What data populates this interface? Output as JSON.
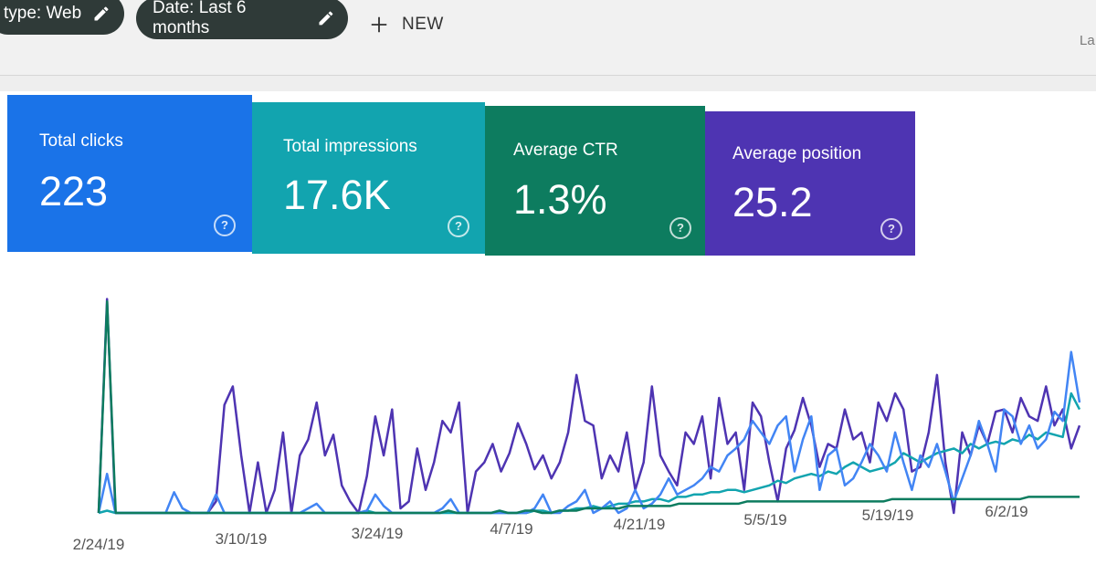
{
  "toolbar": {
    "chip_type_label": "type: Web",
    "chip_date_label": "Date: Last 6 months",
    "new_label": "NEW",
    "truncated_text": "La",
    "icons": {
      "edit": "pencil-icon",
      "add": "plus-icon"
    }
  },
  "cards": [
    {
      "label": "Total clicks",
      "value": "223",
      "color": "#1a73e8"
    },
    {
      "label": "Total impressions",
      "value": "17.6K",
      "color": "#12a4af"
    },
    {
      "label": "Average CTR",
      "value": "1.3%",
      "color": "#0d7c5f"
    },
    {
      "label": "Average position",
      "value": "25.2",
      "color": "#4e34b2"
    }
  ],
  "help_icon_text": "?",
  "chart_data": {
    "type": "line",
    "x_tick_labels": [
      "2/24/19",
      "3/10/19",
      "3/24/19",
      "4/7/19",
      "4/21/19",
      "5/5/19",
      "5/19/19",
      "6/2/19"
    ],
    "series": [
      {
        "color": "#4e34b2",
        "values": [
          0,
          93,
          0,
          0,
          0,
          0,
          0,
          0,
          0,
          0,
          0,
          0,
          0,
          0,
          5,
          47,
          55,
          25,
          0,
          22,
          0,
          10,
          35,
          0,
          25,
          32,
          48,
          25,
          34,
          12,
          5,
          0,
          16,
          42,
          25,
          45,
          2,
          5,
          28,
          10,
          22,
          40,
          35,
          48,
          0,
          18,
          22,
          30,
          18,
          26,
          39,
          30,
          19,
          25,
          15,
          22,
          35,
          60,
          40,
          38,
          15,
          25,
          18,
          35,
          10,
          22,
          55,
          25,
          18,
          12,
          35,
          30,
          42,
          15,
          50,
          30,
          35,
          10,
          48,
          42,
          22,
          5,
          28,
          36,
          50,
          38,
          20,
          30,
          28,
          45,
          32,
          35,
          22,
          48,
          40,
          52,
          45,
          18,
          20,
          35,
          60,
          22,
          0,
          35,
          25,
          38,
          30,
          44,
          45,
          35,
          50,
          42,
          40,
          55,
          38,
          45,
          28,
          38
        ]
      },
      {
        "color": "#12a4af",
        "values": [
          0,
          1,
          0,
          0,
          0,
          0,
          0,
          0,
          0,
          0,
          0,
          0,
          0,
          0,
          0,
          0,
          0,
          0,
          0,
          0,
          0,
          0,
          0,
          0,
          0,
          0,
          0,
          0,
          0,
          0,
          0,
          0,
          1,
          0,
          0,
          0,
          0,
          0,
          0,
          0,
          0,
          0,
          0,
          0,
          0,
          0,
          0,
          0,
          0,
          0,
          0,
          0,
          1,
          1,
          0,
          1,
          1,
          2,
          2,
          3,
          2,
          3,
          4,
          4,
          5,
          5,
          6,
          6,
          5,
          7,
          7,
          8,
          8,
          9,
          9,
          10,
          10,
          9,
          10,
          11,
          12,
          14,
          13,
          15,
          16,
          17,
          16,
          18,
          17,
          20,
          22,
          20,
          18,
          19,
          20,
          22,
          26,
          24,
          22,
          24,
          26,
          27,
          28,
          26,
          30,
          28,
          30,
          31,
          30,
          32,
          31,
          34,
          32,
          35,
          34,
          33,
          52,
          45
        ]
      },
      {
        "color": "#4285f4",
        "values": [
          0,
          17,
          0,
          0,
          0,
          0,
          0,
          0,
          0,
          9,
          2,
          0,
          0,
          0,
          8,
          0,
          0,
          0,
          0,
          0,
          0,
          0,
          0,
          0,
          0,
          2,
          4,
          0,
          0,
          0,
          0,
          0,
          1,
          8,
          3,
          0,
          0,
          0,
          0,
          0,
          0,
          2,
          6,
          0,
          0,
          0,
          0,
          0,
          0,
          0,
          0,
          0,
          2,
          8,
          0,
          0,
          3,
          5,
          10,
          0,
          2,
          5,
          0,
          2,
          10,
          2,
          4,
          8,
          15,
          8,
          10,
          12,
          15,
          20,
          18,
          25,
          28,
          32,
          40,
          35,
          30,
          38,
          42,
          18,
          32,
          42,
          10,
          25,
          28,
          12,
          15,
          22,
          30,
          25,
          18,
          35,
          22,
          10,
          25,
          20,
          30,
          18,
          5,
          15,
          25,
          40,
          30,
          18,
          45,
          42,
          30,
          38,
          28,
          32,
          44,
          40,
          70,
          48
        ]
      },
      {
        "color": "#0d7c5f",
        "values": [
          0,
          92,
          0,
          0,
          0,
          0,
          0,
          0,
          0,
          0,
          0,
          0,
          0,
          0,
          0,
          0,
          0,
          0,
          0,
          0,
          0,
          0,
          0,
          0,
          0,
          0,
          0,
          0,
          0,
          0,
          0,
          0,
          0,
          0,
          0,
          0,
          0,
          0,
          0,
          0,
          0,
          1,
          0,
          0,
          0,
          0,
          0,
          1,
          0,
          0,
          1,
          1,
          0,
          0,
          1,
          1,
          1,
          2,
          2,
          2,
          2,
          2,
          3,
          3,
          3,
          3,
          3,
          3,
          4,
          4,
          4,
          4,
          4,
          4,
          4,
          4,
          5,
          5,
          5,
          5,
          5,
          5,
          5,
          5,
          5,
          5,
          5,
          5,
          5,
          5,
          5,
          5,
          5,
          6,
          6,
          6,
          6,
          6,
          6,
          6,
          6,
          6,
          6,
          6,
          6,
          6,
          6,
          6,
          6,
          7,
          7,
          7,
          7,
          7,
          7,
          7
        ]
      }
    ]
  }
}
